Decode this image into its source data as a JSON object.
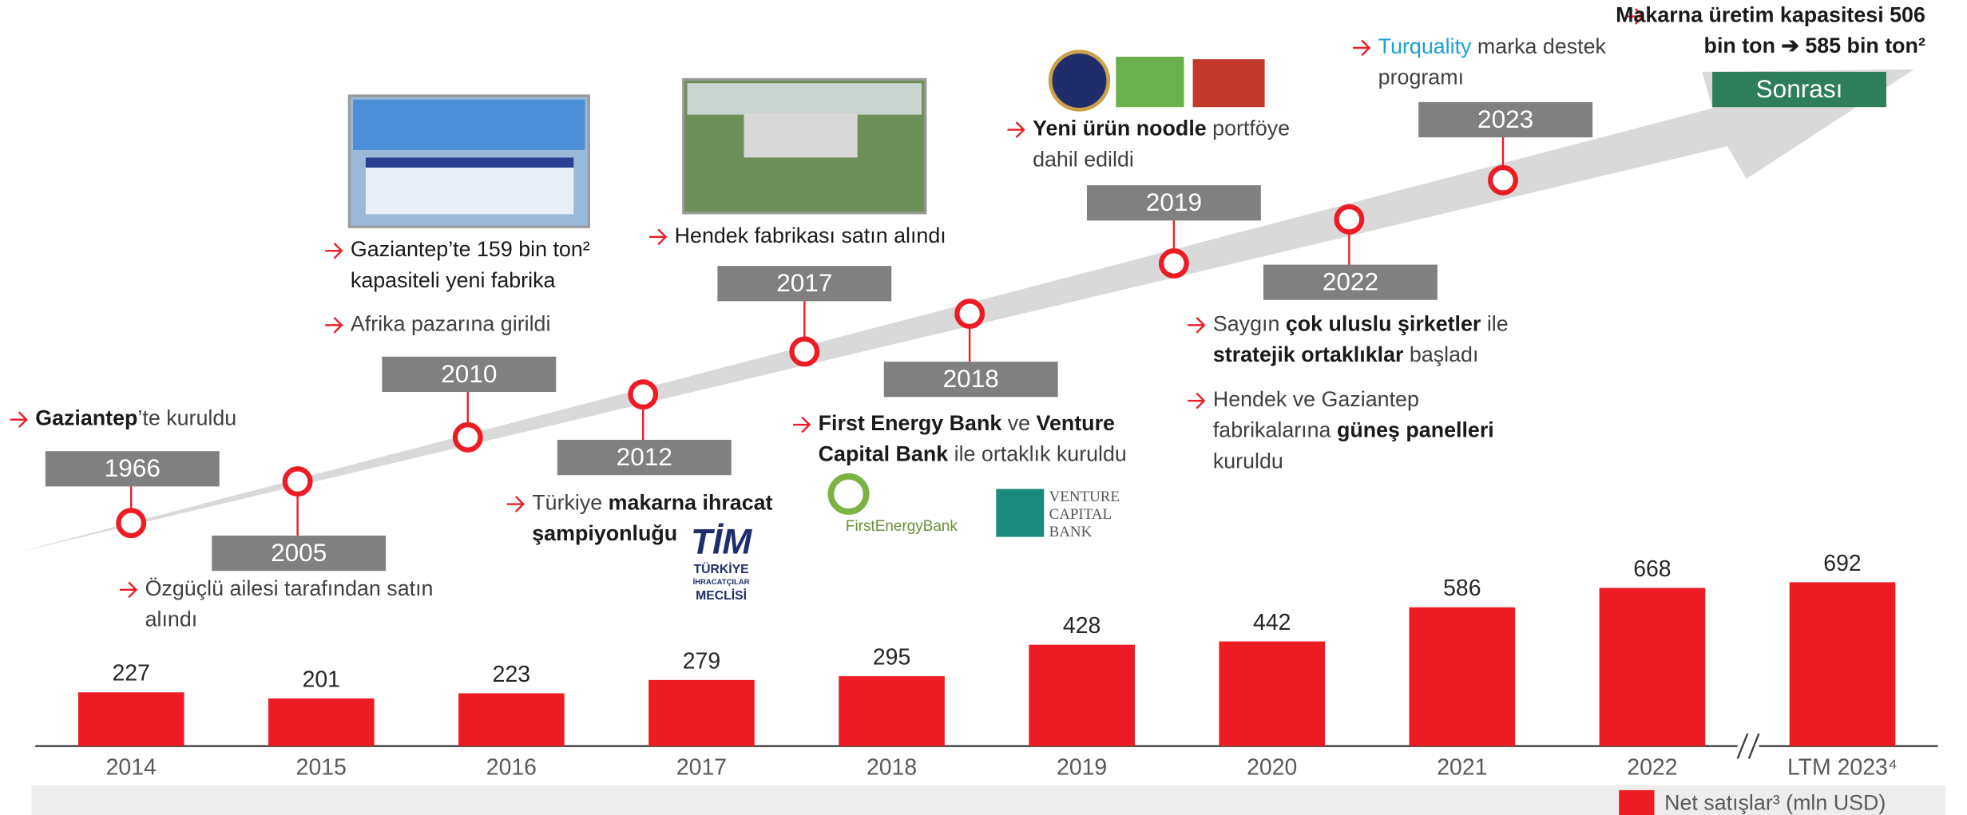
{
  "timeline": [
    {
      "year": "1966",
      "box_color": "#808080",
      "notes": [
        [
          [
            {
              "text": "Gaziantep",
              "style": "bold"
            },
            {
              "text": "’te kuruldu"
            }
          ]
        ]
      ]
    },
    {
      "year": "2005",
      "box_color": "#808080",
      "notes": [
        [
          [
            {
              "text": "Özgüçlü ailesi tarafından satın"
            }
          ],
          [
            {
              "text": "alındı"
            }
          ]
        ]
      ]
    },
    {
      "year": "2010",
      "box_color": "#808080",
      "notes": [
        [
          [
            {
              "text": "Gaziantep’te 159 bin ton²",
              "style": "dark"
            }
          ],
          [
            {
              "text": "kapasiteli yeni fabrika",
              "style": "dark"
            }
          ]
        ],
        [
          [
            {
              "text": "Afrika pazarına girildi"
            }
          ]
        ]
      ]
    },
    {
      "year": "2012",
      "box_color": "#808080",
      "notes": [
        [
          [
            {
              "text": "Türkiye "
            },
            {
              "text": "makarna ihracat",
              "style": "bold"
            }
          ],
          [
            {
              "text": "şampiyonluğu",
              "style": "bold"
            }
          ]
        ]
      ]
    },
    {
      "year": "2017",
      "box_color": "#808080",
      "notes": [
        [
          [
            {
              "text": "Hendek fabrikası satın alındı",
              "style": "dark"
            }
          ]
        ]
      ]
    },
    {
      "year": "2018",
      "box_color": "#808080",
      "notes": [
        [
          [
            {
              "text": "First Energy Bank",
              "style": "bold"
            },
            {
              "text": " ve "
            },
            {
              "text": "Venture",
              "style": "bold"
            }
          ],
          [
            {
              "text": "Capital Bank",
              "style": "bold"
            },
            {
              "text": " ile ortaklık kuruldu"
            }
          ]
        ]
      ]
    },
    {
      "year": "2019",
      "box_color": "#808080",
      "notes": [
        [
          [
            {
              "text": "Yeni ürün noodle",
              "style": "bold"
            },
            {
              "text": " portföye"
            }
          ],
          [
            {
              "text": "dahil edildi"
            }
          ]
        ]
      ]
    },
    {
      "year": "2022",
      "box_color": "#808080",
      "notes": [
        [
          [
            {
              "text": "Saygın "
            },
            {
              "text": "çok uluslu şirketler",
              "style": "bold"
            },
            {
              "text": " ile"
            }
          ],
          [
            {
              "text": "stratejik ortaklıklar",
              "style": "bold"
            },
            {
              "text": " başladı"
            }
          ]
        ],
        [
          [
            {
              "text": "Hendek ve Gaziantep"
            }
          ],
          [
            {
              "text": "fabrikalarına "
            },
            {
              "text": "güneş panelleri",
              "style": "bold"
            }
          ],
          [
            {
              "text": "kuruldu"
            }
          ]
        ]
      ]
    },
    {
      "year": "2023",
      "box_color": "#808080",
      "notes": [
        [
          [
            {
              "text": "Turquality",
              "style": "accent"
            },
            {
              "text": " marka destek"
            }
          ],
          [
            {
              "text": "programı"
            }
          ]
        ]
      ]
    },
    {
      "year": "Sonrası",
      "box_color": "#2e7d5b",
      "notes": [
        [
          [
            {
              "text": "Makarna üretim kapasitesi 506",
              "style": "bold"
            }
          ],
          [
            {
              "text": "bin ton ➔ 585 bin ton²",
              "style": "bold"
            }
          ]
        ]
      ]
    }
  ],
  "logos": {
    "first_energy": "FirstEnergyBank",
    "venture": [
      "VENTURE",
      "CAPITAL",
      "BANK"
    ],
    "tim": [
      "TİM",
      "TÜRKİYE",
      "İHRACATÇILAR",
      "MECLİSİ"
    ]
  },
  "chart_data": {
    "type": "bar",
    "categories": [
      "2014",
      "2015",
      "2016",
      "2017",
      "2018",
      "2019",
      "2020",
      "2021",
      "2022",
      "LTM 2023⁴"
    ],
    "series": [
      {
        "name": "Net satışlar³ (mln USD)",
        "color": "#ed1c24",
        "values": [
          227,
          201,
          223,
          279,
          295,
          428,
          442,
          586,
          668,
          692
        ]
      }
    ]
  }
}
